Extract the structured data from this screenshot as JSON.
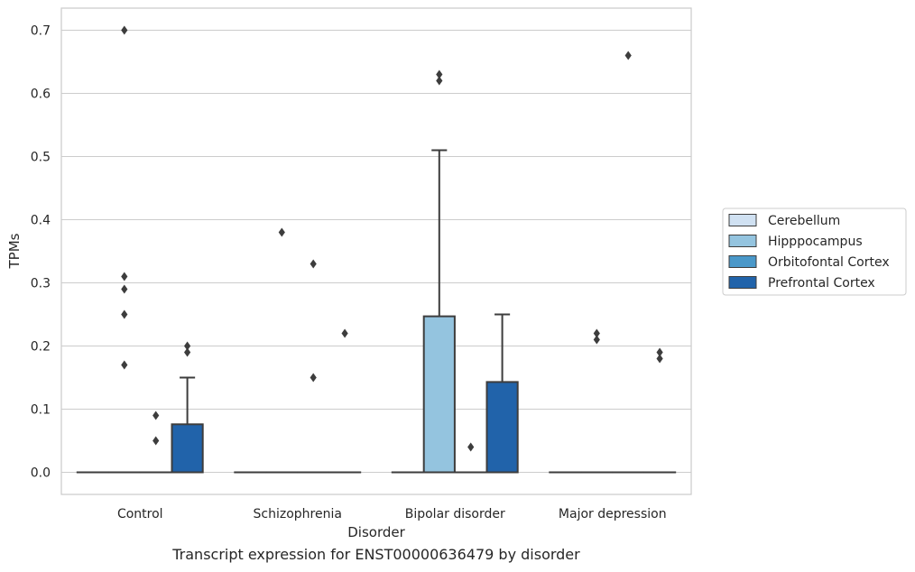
{
  "caption": "Transcript expression for ENST00000636479 by disorder",
  "chart_data": {
    "type": "box",
    "xlabel": "Disorder",
    "ylabel": "TPMs",
    "ylim": [
      -0.035,
      0.735
    ],
    "yticks": [
      0.0,
      0.1,
      0.2,
      0.3,
      0.4,
      0.5,
      0.6,
      0.7
    ],
    "grid": true,
    "legend_position": "right",
    "categories": [
      "Control",
      "Schizophrenia",
      "Bipolar disorder",
      "Major depression"
    ],
    "series": [
      {
        "name": "Cerebellum",
        "color": "#d0e1f2",
        "boxes": [
          {
            "q1": 0,
            "median": 0,
            "q3": 0,
            "whisker_low": 0,
            "whisker_high": 0,
            "outliers": []
          },
          {
            "q1": 0,
            "median": 0,
            "q3": 0,
            "whisker_low": 0,
            "whisker_high": 0,
            "outliers": []
          },
          {
            "q1": 0,
            "median": 0,
            "q3": 0,
            "whisker_low": 0,
            "whisker_high": 0,
            "outliers": []
          },
          {
            "q1": 0,
            "median": 0,
            "q3": 0,
            "whisker_low": 0,
            "whisker_high": 0,
            "outliers": []
          }
        ]
      },
      {
        "name": "Hipppocampus",
        "color": "#94c4df",
        "boxes": [
          {
            "q1": 0,
            "median": 0,
            "q3": 0,
            "whisker_low": 0,
            "whisker_high": 0,
            "outliers": [
              0.17,
              0.25,
              0.29,
              0.31,
              0.7
            ]
          },
          {
            "q1": 0,
            "median": 0,
            "q3": 0,
            "whisker_low": 0,
            "whisker_high": 0,
            "outliers": [
              0.38
            ]
          },
          {
            "q1": 0,
            "median": 0,
            "q3": 0.247,
            "whisker_low": 0,
            "whisker_high": 0.51,
            "outliers": [
              0.62,
              0.63
            ]
          },
          {
            "q1": 0,
            "median": 0,
            "q3": 0,
            "whisker_low": 0,
            "whisker_high": 0,
            "outliers": [
              0.21,
              0.22
            ]
          }
        ]
      },
      {
        "name": "Orbitofontal Cortex",
        "color": "#4a98c9",
        "boxes": [
          {
            "q1": 0,
            "median": 0,
            "q3": 0,
            "whisker_low": 0,
            "whisker_high": 0,
            "outliers": [
              0.05,
              0.09
            ]
          },
          {
            "q1": 0,
            "median": 0,
            "q3": 0,
            "whisker_low": 0,
            "whisker_high": 0,
            "outliers": [
              0.15,
              0.33
            ]
          },
          {
            "q1": 0,
            "median": 0,
            "q3": 0,
            "whisker_low": 0,
            "whisker_high": 0,
            "outliers": [
              0.04
            ]
          },
          {
            "q1": 0,
            "median": 0,
            "q3": 0,
            "whisker_low": 0,
            "whisker_high": 0,
            "outliers": [
              0.66
            ]
          }
        ]
      },
      {
        "name": "Prefrontal Cortex",
        "color": "#2163aa",
        "boxes": [
          {
            "q1": 0,
            "median": 0,
            "q3": 0.076,
            "whisker_low": 0,
            "whisker_high": 0.15,
            "outliers": [
              0.19,
              0.2
            ]
          },
          {
            "q1": 0,
            "median": 0,
            "q3": 0,
            "whisker_low": 0,
            "whisker_high": 0,
            "outliers": [
              0.22
            ]
          },
          {
            "q1": 0,
            "median": 0,
            "q3": 0.143,
            "whisker_low": 0,
            "whisker_high": 0.25,
            "outliers": []
          },
          {
            "q1": 0,
            "median": 0,
            "q3": 0,
            "whisker_low": 0,
            "whisker_high": 0,
            "outliers": [
              0.18,
              0.19
            ]
          }
        ]
      }
    ]
  }
}
